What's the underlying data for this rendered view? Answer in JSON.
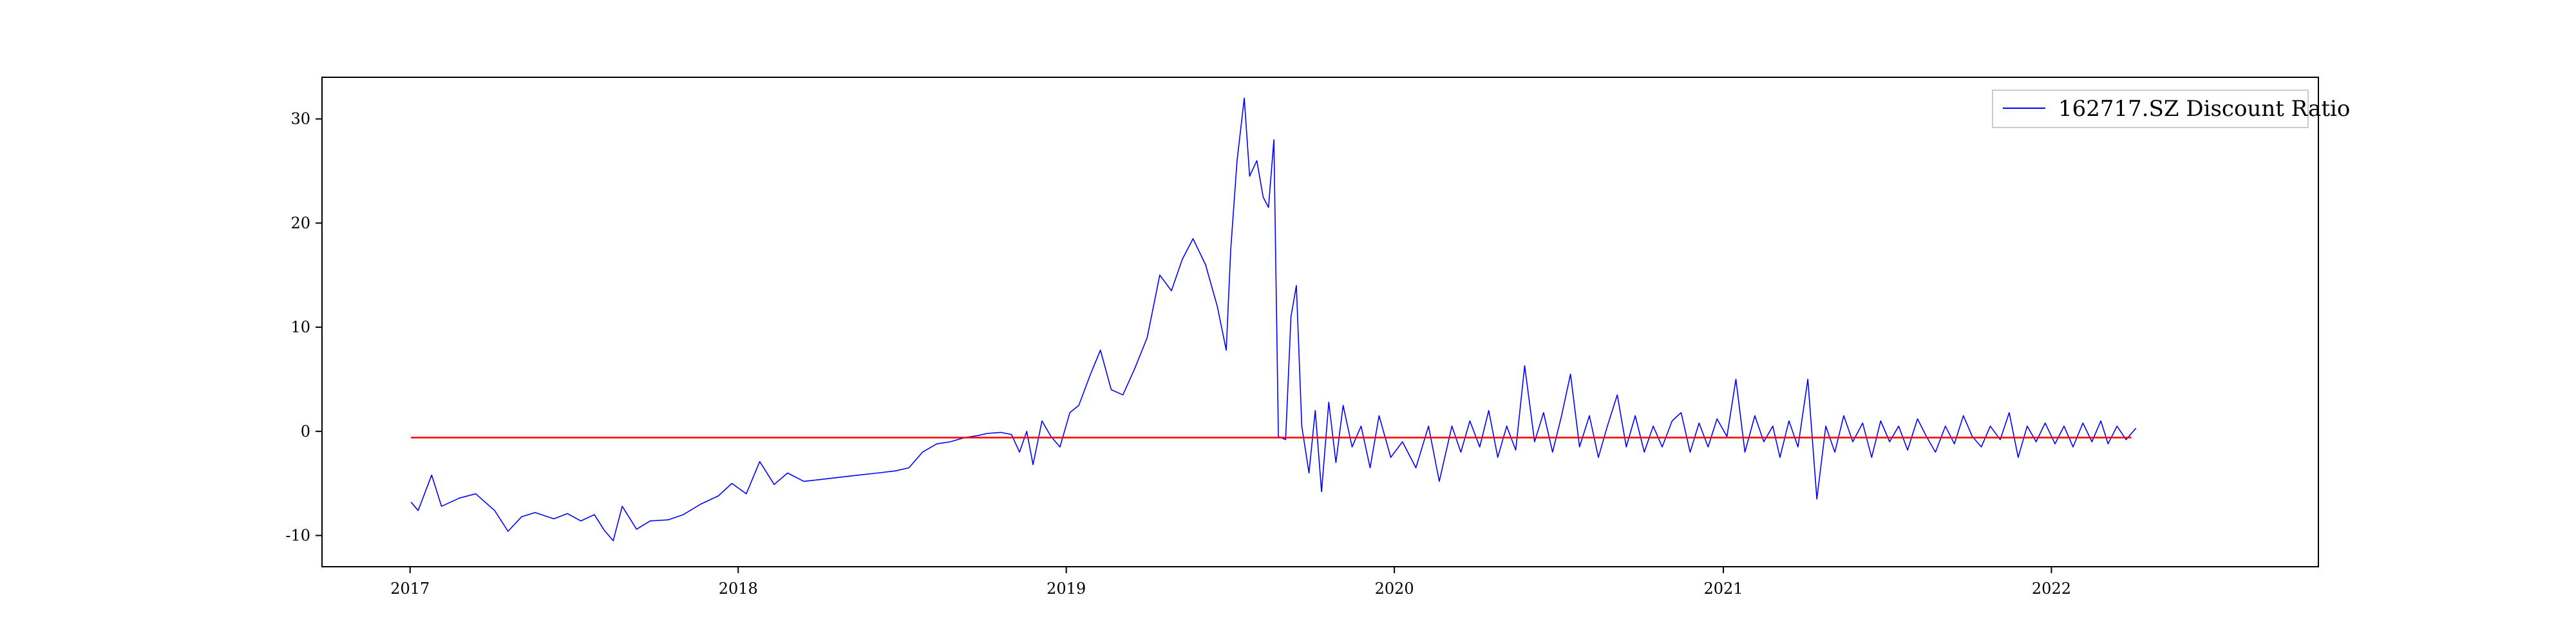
{
  "chart_data": {
    "type": "line",
    "x_axis": {
      "kind": "date",
      "range": [
        "2016-09-25",
        "2022-10-25"
      ],
      "ticks": [
        "2017",
        "2018",
        "2019",
        "2020",
        "2021",
        "2022"
      ]
    },
    "y_axis": {
      "range": [
        -13,
        34
      ],
      "ticks": [
        "-10",
        "0",
        "10",
        "20",
        "30"
      ]
    },
    "grid": false,
    "legend": {
      "position": "top-right",
      "entries": [
        "162717.SZ Discount Ratio"
      ]
    },
    "series": [
      {
        "name": "162717.SZ Discount Ratio",
        "color": "#0000ff",
        "points": [
          [
            "2017-01-02",
            -6.8
          ],
          [
            "2017-01-10",
            -7.6
          ],
          [
            "2017-01-25",
            -4.2
          ],
          [
            "2017-02-05",
            -7.2
          ],
          [
            "2017-02-25",
            -6.4
          ],
          [
            "2017-03-15",
            -6.0
          ],
          [
            "2017-04-05",
            -7.6
          ],
          [
            "2017-04-20",
            -9.6
          ],
          [
            "2017-05-05",
            -8.2
          ],
          [
            "2017-05-20",
            -7.8
          ],
          [
            "2017-06-10",
            -8.4
          ],
          [
            "2017-06-25",
            -7.9
          ],
          [
            "2017-07-10",
            -8.6
          ],
          [
            "2017-07-25",
            -8.0
          ],
          [
            "2017-08-05",
            -9.5
          ],
          [
            "2017-08-15",
            -10.5
          ],
          [
            "2017-08-25",
            -7.2
          ],
          [
            "2017-09-10",
            -9.4
          ],
          [
            "2017-09-25",
            -8.6
          ],
          [
            "2017-10-15",
            -8.5
          ],
          [
            "2017-11-01",
            -8.0
          ],
          [
            "2017-11-20",
            -7.0
          ],
          [
            "2017-12-10",
            -6.2
          ],
          [
            "2017-12-25",
            -5.0
          ],
          [
            "2018-01-10",
            -6.0
          ],
          [
            "2018-01-25",
            -2.9
          ],
          [
            "2018-02-10",
            -5.1
          ],
          [
            "2018-02-25",
            -4.0
          ],
          [
            "2018-03-15",
            -4.8
          ],
          [
            "2018-04-05",
            -4.6
          ],
          [
            "2018-04-25",
            -4.4
          ],
          [
            "2018-05-15",
            -4.2
          ],
          [
            "2018-06-05",
            -4.0
          ],
          [
            "2018-06-25",
            -3.8
          ],
          [
            "2018-07-10",
            -3.5
          ],
          [
            "2018-07-25",
            -2.0
          ],
          [
            "2018-08-10",
            -1.2
          ],
          [
            "2018-08-25",
            -1.0
          ],
          [
            "2018-09-10",
            -0.6
          ],
          [
            "2018-09-25",
            -0.4
          ],
          [
            "2018-10-05",
            -0.2
          ],
          [
            "2018-10-20",
            -0.1
          ],
          [
            "2018-11-01",
            -0.3
          ],
          [
            "2018-11-10",
            -2.0
          ],
          [
            "2018-11-18",
            0.0
          ],
          [
            "2018-11-25",
            -3.2
          ],
          [
            "2018-12-05",
            1.0
          ],
          [
            "2018-12-15",
            -0.5
          ],
          [
            "2018-12-25",
            -1.5
          ],
          [
            "2019-01-05",
            1.8
          ],
          [
            "2019-01-15",
            2.5
          ],
          [
            "2019-01-28",
            5.5
          ],
          [
            "2019-02-08",
            7.8
          ],
          [
            "2019-02-20",
            4.0
          ],
          [
            "2019-03-05",
            3.5
          ],
          [
            "2019-03-18",
            6.0
          ],
          [
            "2019-04-01",
            9.0
          ],
          [
            "2019-04-15",
            15.0
          ],
          [
            "2019-04-28",
            13.5
          ],
          [
            "2019-05-10",
            16.5
          ],
          [
            "2019-05-22",
            18.5
          ],
          [
            "2019-06-05",
            16.0
          ],
          [
            "2019-06-18",
            12.0
          ],
          [
            "2019-06-28",
            7.8
          ],
          [
            "2019-07-03",
            17.5
          ],
          [
            "2019-07-10",
            26.0
          ],
          [
            "2019-07-18",
            32.0
          ],
          [
            "2019-07-24",
            24.5
          ],
          [
            "2019-08-01",
            26.0
          ],
          [
            "2019-08-08",
            22.5
          ],
          [
            "2019-08-14",
            21.5
          ],
          [
            "2019-08-20",
            28.0
          ],
          [
            "2019-08-25",
            -0.5
          ],
          [
            "2019-09-02",
            -0.8
          ],
          [
            "2019-09-08",
            11.0
          ],
          [
            "2019-09-14",
            14.0
          ],
          [
            "2019-09-20",
            0.5
          ],
          [
            "2019-09-28",
            -4.0
          ],
          [
            "2019-10-05",
            2.0
          ],
          [
            "2019-10-12",
            -5.8
          ],
          [
            "2019-10-20",
            2.8
          ],
          [
            "2019-10-28",
            -3.0
          ],
          [
            "2019-11-05",
            2.5
          ],
          [
            "2019-11-15",
            -1.5
          ],
          [
            "2019-11-25",
            0.5
          ],
          [
            "2019-12-05",
            -3.5
          ],
          [
            "2019-12-15",
            1.5
          ],
          [
            "2019-12-28",
            -2.5
          ],
          [
            "2020-01-10",
            -1.0
          ],
          [
            "2020-01-25",
            -3.5
          ],
          [
            "2020-02-08",
            0.5
          ],
          [
            "2020-02-20",
            -4.8
          ],
          [
            "2020-03-05",
            0.5
          ],
          [
            "2020-03-15",
            -2.0
          ],
          [
            "2020-03-25",
            1.0
          ],
          [
            "2020-04-05",
            -1.5
          ],
          [
            "2020-04-15",
            2.0
          ],
          [
            "2020-04-25",
            -2.5
          ],
          [
            "2020-05-05",
            0.5
          ],
          [
            "2020-05-15",
            -1.8
          ],
          [
            "2020-05-25",
            6.3
          ],
          [
            "2020-06-05",
            -1.0
          ],
          [
            "2020-06-15",
            1.8
          ],
          [
            "2020-06-25",
            -2.0
          ],
          [
            "2020-07-05",
            1.5
          ],
          [
            "2020-07-15",
            5.5
          ],
          [
            "2020-07-25",
            -1.5
          ],
          [
            "2020-08-05",
            1.5
          ],
          [
            "2020-08-15",
            -2.5
          ],
          [
            "2020-08-25",
            0.5
          ],
          [
            "2020-09-05",
            3.5
          ],
          [
            "2020-09-15",
            -1.5
          ],
          [
            "2020-09-25",
            1.5
          ],
          [
            "2020-10-05",
            -2.0
          ],
          [
            "2020-10-15",
            0.5
          ],
          [
            "2020-10-25",
            -1.5
          ],
          [
            "2020-11-05",
            1.0
          ],
          [
            "2020-11-15",
            1.8
          ],
          [
            "2020-11-25",
            -2.0
          ],
          [
            "2020-12-05",
            0.8
          ],
          [
            "2020-12-15",
            -1.5
          ],
          [
            "2020-12-25",
            1.2
          ],
          [
            "2021-01-05",
            -0.5
          ],
          [
            "2021-01-15",
            5.0
          ],
          [
            "2021-01-25",
            -2.0
          ],
          [
            "2021-02-05",
            1.5
          ],
          [
            "2021-02-15",
            -1.0
          ],
          [
            "2021-02-25",
            0.5
          ],
          [
            "2021-03-05",
            -2.5
          ],
          [
            "2021-03-15",
            1.0
          ],
          [
            "2021-03-25",
            -1.5
          ],
          [
            "2021-04-05",
            5.0
          ],
          [
            "2021-04-15",
            -6.5
          ],
          [
            "2021-04-25",
            0.5
          ],
          [
            "2021-05-05",
            -2.0
          ],
          [
            "2021-05-15",
            1.5
          ],
          [
            "2021-05-25",
            -1.0
          ],
          [
            "2021-06-05",
            0.8
          ],
          [
            "2021-06-15",
            -2.5
          ],
          [
            "2021-06-25",
            1.0
          ],
          [
            "2021-07-05",
            -1.0
          ],
          [
            "2021-07-15",
            0.5
          ],
          [
            "2021-07-25",
            -1.8
          ],
          [
            "2021-08-05",
            1.2
          ],
          [
            "2021-08-15",
            -0.5
          ],
          [
            "2021-08-25",
            -2.0
          ],
          [
            "2021-09-05",
            0.5
          ],
          [
            "2021-09-15",
            -1.2
          ],
          [
            "2021-09-25",
            1.5
          ],
          [
            "2021-10-05",
            -0.5
          ],
          [
            "2021-10-15",
            -1.5
          ],
          [
            "2021-10-25",
            0.5
          ],
          [
            "2021-11-05",
            -0.8
          ],
          [
            "2021-11-15",
            1.8
          ],
          [
            "2021-11-25",
            -2.5
          ],
          [
            "2021-12-05",
            0.5
          ],
          [
            "2021-12-15",
            -1.0
          ],
          [
            "2021-12-25",
            0.8
          ],
          [
            "2022-01-05",
            -1.2
          ],
          [
            "2022-01-15",
            0.5
          ],
          [
            "2022-01-25",
            -1.5
          ],
          [
            "2022-02-05",
            0.8
          ],
          [
            "2022-02-15",
            -1.0
          ],
          [
            "2022-02-25",
            1.0
          ],
          [
            "2022-03-05",
            -1.2
          ],
          [
            "2022-03-15",
            0.5
          ],
          [
            "2022-03-25",
            -0.8
          ],
          [
            "2022-04-05",
            0.3
          ]
        ]
      },
      {
        "name": "",
        "color": "#ff0000",
        "points": [
          [
            "2017-01-02",
            -0.6
          ],
          [
            "2022-03-31",
            -0.6
          ]
        ]
      }
    ]
  }
}
